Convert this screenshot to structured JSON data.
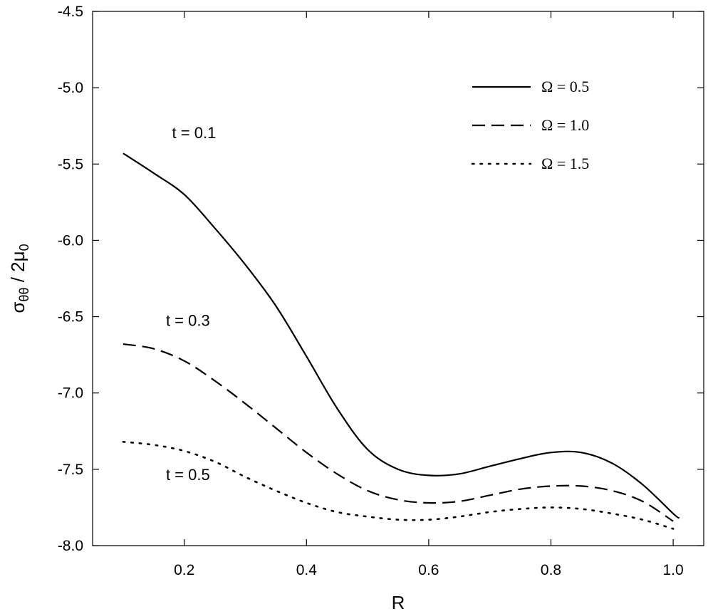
{
  "chart_data": {
    "type": "line",
    "xlabel": "R",
    "ylabel": "σθθ / 2μ0",
    "ylabel_parts": {
      "main": "σ",
      "sub1": "θθ",
      "mid": " / 2μ",
      "sub2": "0"
    },
    "xlim": [
      0.05,
      1.05
    ],
    "ylim": [
      -8.0,
      -4.5
    ],
    "xticks": [
      0.2,
      0.4,
      0.6,
      0.8,
      1.0
    ],
    "xtick_labels": [
      "0.2",
      "0.4",
      "0.6",
      "0.8",
      "1.0"
    ],
    "yticks": [
      -4.5,
      -5.0,
      -5.5,
      -6.0,
      -6.5,
      -7.0,
      -7.5,
      -8.0
    ],
    "ytick_labels": [
      "-4.5",
      "-5.0",
      "-5.5",
      "-6.0",
      "-6.5",
      "-7.0",
      "-7.5",
      "-8.0"
    ],
    "grid": false,
    "legend_position": "top-right",
    "series": [
      {
        "name": "Ω = 0.5",
        "style": "solid",
        "x": [
          0.1,
          0.15,
          0.2,
          0.25,
          0.3,
          0.35,
          0.4,
          0.45,
          0.5,
          0.55,
          0.6,
          0.65,
          0.7,
          0.75,
          0.8,
          0.85,
          0.9,
          0.95,
          1.0,
          1.01
        ],
        "y": [
          -5.43,
          -5.56,
          -5.7,
          -5.92,
          -6.16,
          -6.43,
          -6.76,
          -7.1,
          -7.37,
          -7.5,
          -7.54,
          -7.53,
          -7.48,
          -7.43,
          -7.39,
          -7.39,
          -7.46,
          -7.6,
          -7.79,
          -7.82
        ]
      },
      {
        "name": "Ω = 1.0",
        "style": "dashed",
        "x": [
          0.1,
          0.15,
          0.2,
          0.25,
          0.3,
          0.35,
          0.4,
          0.45,
          0.5,
          0.55,
          0.6,
          0.65,
          0.7,
          0.75,
          0.8,
          0.85,
          0.9,
          0.95,
          1.0
        ],
        "y": [
          -6.68,
          -6.71,
          -6.79,
          -6.92,
          -7.07,
          -7.23,
          -7.39,
          -7.53,
          -7.64,
          -7.7,
          -7.72,
          -7.71,
          -7.67,
          -7.63,
          -7.61,
          -7.61,
          -7.64,
          -7.71,
          -7.84
        ]
      },
      {
        "name": "Ω = 1.5",
        "style": "dotted",
        "x": [
          0.1,
          0.15,
          0.2,
          0.25,
          0.3,
          0.35,
          0.4,
          0.45,
          0.5,
          0.55,
          0.6,
          0.65,
          0.7,
          0.75,
          0.8,
          0.85,
          0.9,
          0.95,
          1.0
        ],
        "y": [
          -7.32,
          -7.34,
          -7.38,
          -7.45,
          -7.55,
          -7.64,
          -7.72,
          -7.78,
          -7.81,
          -7.83,
          -7.83,
          -7.81,
          -7.78,
          -7.76,
          -7.75,
          -7.76,
          -7.79,
          -7.83,
          -7.89
        ]
      }
    ],
    "annotations": [
      {
        "text": "t = 0.1",
        "x": 0.18,
        "y": -5.33
      },
      {
        "text": "t = 0.3",
        "x": 0.17,
        "y": -6.56
      },
      {
        "text": "t = 0.5",
        "x": 0.17,
        "y": -7.57
      }
    ]
  }
}
